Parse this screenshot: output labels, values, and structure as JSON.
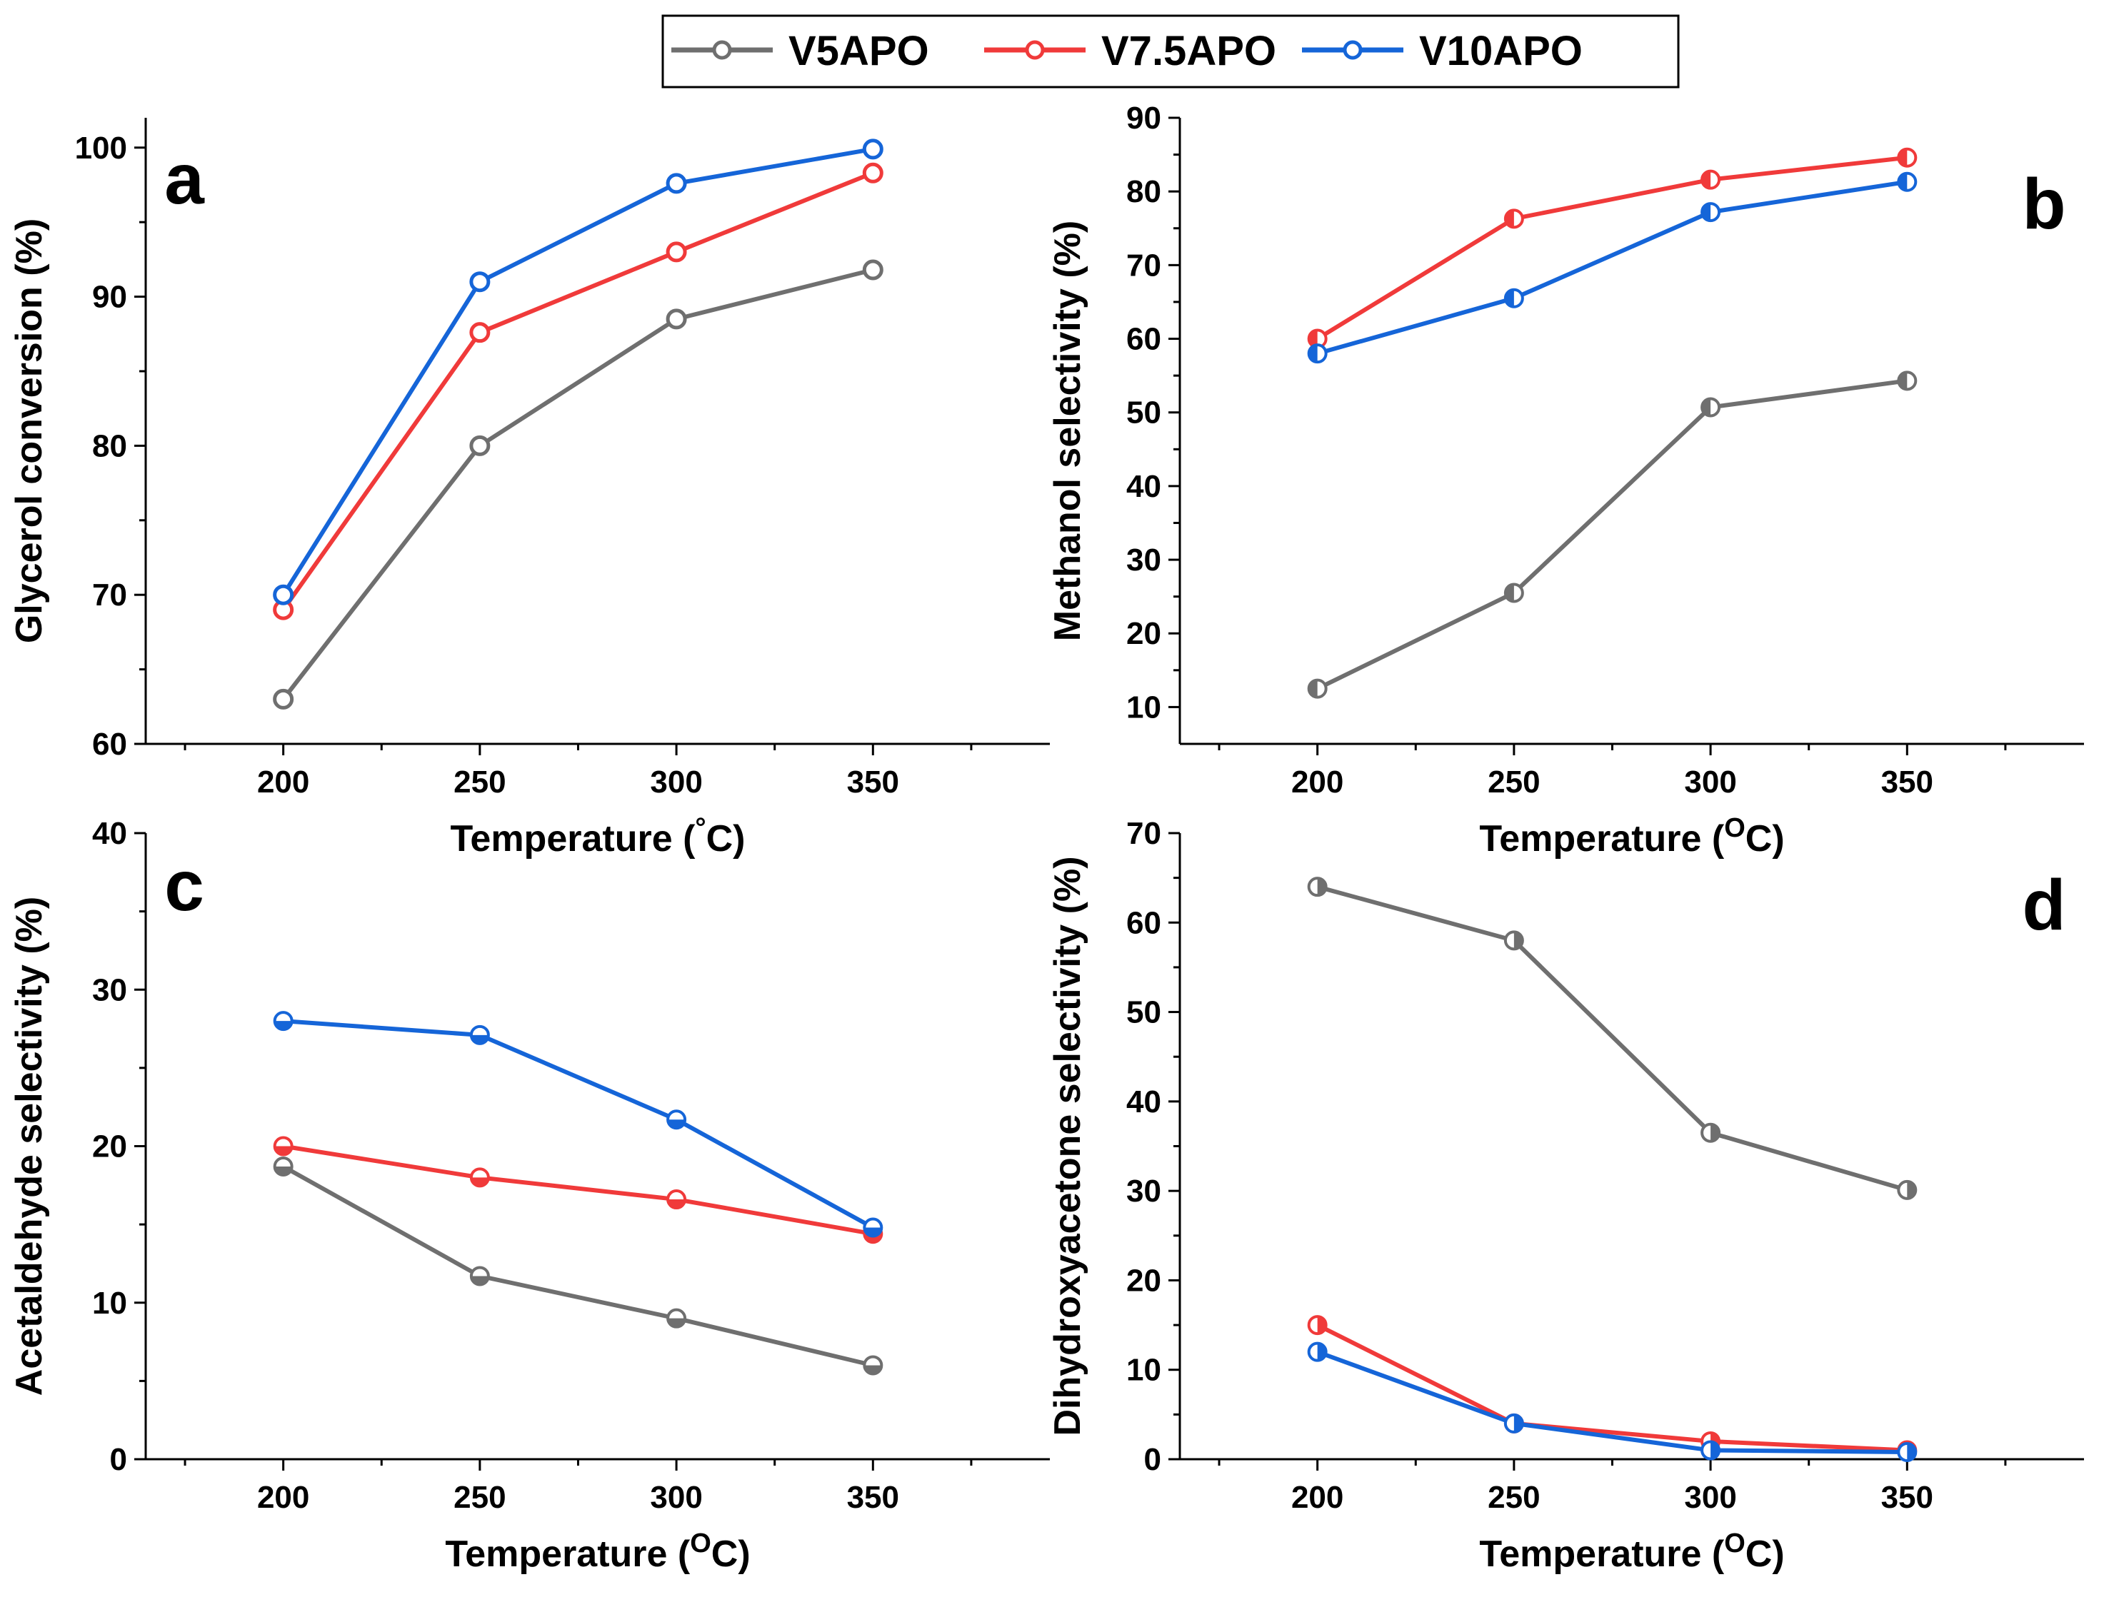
{
  "legend": [
    {
      "name": "V5APO",
      "color": "#6f6f6f"
    },
    {
      "name": "V7.5APO",
      "color": "#f03a3a"
    },
    {
      "name": "V10APO",
      "color": "#1565d8"
    }
  ],
  "chart_data": [
    {
      "type": "line",
      "panel": "a",
      "xlabel": "Temperature (°C)",
      "ylabel": "Glycerol conversion (%)",
      "x": [
        200,
        250,
        300,
        350
      ],
      "xlim": [
        165,
        395
      ],
      "ylim": [
        60,
        102
      ],
      "xticks": [
        200,
        250,
        300,
        350
      ],
      "yticks": [
        60,
        70,
        80,
        90,
        100
      ],
      "marker": "open",
      "series": [
        {
          "name": "V5APO",
          "values": [
            63,
            80,
            88.5,
            91.8
          ]
        },
        {
          "name": "V7.5APO",
          "values": [
            69,
            87.6,
            93,
            98.3
          ]
        },
        {
          "name": "V10APO",
          "values": [
            70,
            91,
            97.6,
            99.9
          ]
        }
      ]
    },
    {
      "type": "line",
      "panel": "b",
      "xlabel": "Temperature (OC)",
      "ylabel": "Methanol selectivity (%)",
      "x": [
        200,
        250,
        300,
        350
      ],
      "xlim": [
        165,
        395
      ],
      "ylim": [
        5,
        90
      ],
      "xticks": [
        200,
        250,
        300,
        350
      ],
      "yticks": [
        10,
        20,
        30,
        40,
        50,
        60,
        70,
        80,
        90
      ],
      "marker": "half-left",
      "series": [
        {
          "name": "V5APO",
          "values": [
            12.5,
            25.5,
            50.7,
            54.3
          ]
        },
        {
          "name": "V7.5APO",
          "values": [
            60,
            76.3,
            81.6,
            84.6
          ]
        },
        {
          "name": "V10APO",
          "values": [
            58,
            65.5,
            77.2,
            81.3
          ]
        }
      ]
    },
    {
      "type": "line",
      "panel": "c",
      "xlabel": "Temperature (OC)",
      "ylabel": "Acetaldehyde selectivity (%)",
      "x": [
        200,
        250,
        300,
        350
      ],
      "xlim": [
        165,
        395
      ],
      "ylim": [
        0,
        40
      ],
      "xticks": [
        200,
        250,
        300,
        350
      ],
      "yticks": [
        0,
        10,
        20,
        30,
        40
      ],
      "marker": "half-bottom",
      "series": [
        {
          "name": "V5APO",
          "values": [
            18.7,
            11.7,
            9,
            6
          ]
        },
        {
          "name": "V7.5APO",
          "values": [
            20,
            18,
            16.6,
            14.4
          ]
        },
        {
          "name": "V10APO",
          "values": [
            28,
            27.1,
            21.7,
            14.8
          ]
        }
      ]
    },
    {
      "type": "line",
      "panel": "d",
      "xlabel": "Temperature (OC)",
      "ylabel": "Dihydroxyacetone selectivity (%)",
      "x": [
        200,
        250,
        300,
        350
      ],
      "xlim": [
        165,
        395
      ],
      "ylim": [
        0,
        70
      ],
      "xticks": [
        200,
        250,
        300,
        350
      ],
      "yticks": [
        0,
        10,
        20,
        30,
        40,
        50,
        60,
        70
      ],
      "marker": "half-right",
      "series": [
        {
          "name": "V5APO",
          "values": [
            64,
            58,
            36.5,
            30.1
          ]
        },
        {
          "name": "V7.5APO",
          "values": [
            15,
            4,
            2,
            1
          ]
        },
        {
          "name": "V10APO",
          "values": [
            12,
            4,
            1,
            0.8
          ]
        }
      ]
    }
  ]
}
